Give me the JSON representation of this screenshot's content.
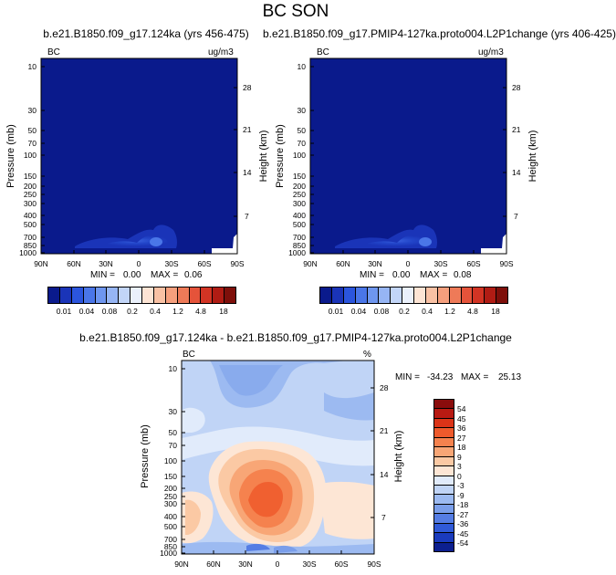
{
  "figure": {
    "title": "BC SON"
  },
  "chart_data": [
    {
      "type": "heatmap",
      "title": "b.e21.B1850.f09_g17.124ka (yrs 456-475)",
      "left_label": "BC",
      "right_label": "ug/m3",
      "xlabel": "",
      "ylabel": "Pressure (mb)",
      "ylabel_right": "Height (km)",
      "x_ticks": [
        "90N",
        "60N",
        "30N",
        "0",
        "30S",
        "60S",
        "90S"
      ],
      "y_ticks": [
        "10",
        "30",
        "50",
        "70",
        "100",
        "150",
        "200",
        "250",
        "300",
        "400",
        "500",
        "700",
        "850",
        "1000"
      ],
      "y_right_ticks": [
        "28",
        "21",
        "14",
        "7"
      ],
      "stats": {
        "min_label": "MIN =",
        "min": "0.00",
        "max_label": "MAX =",
        "max": "0.06"
      },
      "colorbar": {
        "labels": [
          "0.01",
          "0.04",
          "0.08",
          "0.2",
          "0.4",
          "1.2",
          "4.8",
          "18"
        ],
        "colors": [
          "#0a1a8c",
          "#1a34b8",
          "#2b55dd",
          "#4a76e8",
          "#6e96ef",
          "#96b5f4",
          "#c2d5f8",
          "#eaf0fb",
          "#fde4d4",
          "#f9c1a4",
          "#f59f7d",
          "#ee7a58",
          "#e5533a",
          "#d23424",
          "#b01c14",
          "#7e0f0a"
        ]
      }
    },
    {
      "type": "heatmap",
      "title": "b.e21.B1850.f09_g17.PMIP4-127ka.proto004.L2P1change (yrs 406-425)",
      "left_label": "BC",
      "right_label": "ug/m3",
      "xlabel": "",
      "ylabel": "Pressure (mb)",
      "ylabel_right": "Height (km)",
      "x_ticks": [
        "90N",
        "60N",
        "30N",
        "0",
        "30S",
        "60S",
        "90S"
      ],
      "y_ticks": [
        "10",
        "30",
        "50",
        "70",
        "100",
        "150",
        "200",
        "250",
        "300",
        "400",
        "500",
        "700",
        "850",
        "1000"
      ],
      "y_right_ticks": [
        "28",
        "21",
        "14",
        "7"
      ],
      "stats": {
        "min_label": "MIN =",
        "min": "0.00",
        "max_label": "MAX =",
        "max": "0.08"
      },
      "colorbar": {
        "labels": [
          "0.01",
          "0.04",
          "0.08",
          "0.2",
          "0.4",
          "1.2",
          "4.8",
          "18"
        ],
        "colors": [
          "#0a1a8c",
          "#1a34b8",
          "#2b55dd",
          "#4a76e8",
          "#6e96ef",
          "#96b5f4",
          "#c2d5f8",
          "#eaf0fb",
          "#fde4d4",
          "#f9c1a4",
          "#f59f7d",
          "#ee7a58",
          "#e5533a",
          "#d23424",
          "#b01c14",
          "#7e0f0a"
        ]
      }
    },
    {
      "type": "heatmap",
      "title": "b.e21.B1850.f09_g17.124ka - b.e21.B1850.f09_g17.PMIP4-127ka.proto004.L2P1change",
      "left_label": "BC",
      "right_label": "%",
      "xlabel": "",
      "ylabel": "Pressure (mb)",
      "ylabel_right": "Height (km)",
      "x_ticks": [
        "90N",
        "60N",
        "30N",
        "0",
        "30S",
        "60S",
        "90S"
      ],
      "y_ticks": [
        "10",
        "30",
        "50",
        "70",
        "100",
        "150",
        "200",
        "250",
        "300",
        "400",
        "500",
        "700",
        "850",
        "1000"
      ],
      "y_right_ticks": [
        "28",
        "21",
        "14",
        "7"
      ],
      "stats": {
        "min_label": "MIN =",
        "min": "-34.23",
        "max_label": "MAX =",
        "max": "25.13"
      },
      "colorbar": {
        "labels": [
          "54",
          "45",
          "36",
          "27",
          "18",
          "9",
          "3",
          "0",
          "-3",
          "-9",
          "-18",
          "-27",
          "-36",
          "-45",
          "-54"
        ],
        "colors": [
          "#8a0c0c",
          "#b81a12",
          "#db3418",
          "#ee5a2c",
          "#f5824e",
          "#f8a676",
          "#fbc9a4",
          "#fde6d5",
          "#e1ebfb",
          "#c0d4f6",
          "#9cbaf1",
          "#7a9eea",
          "#557de4",
          "#305ad8",
          "#1a3bbd",
          "#0c1f8f"
        ]
      }
    }
  ]
}
